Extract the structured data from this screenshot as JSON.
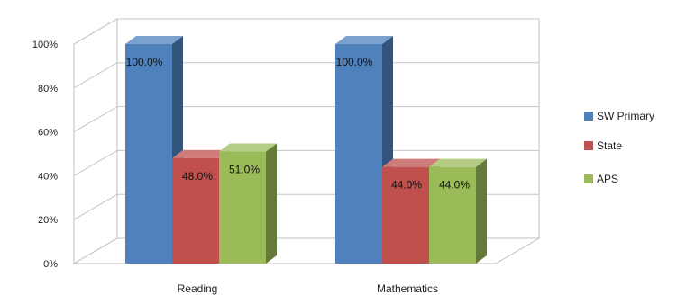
{
  "chart_data": {
    "type": "bar",
    "categories": [
      "Reading",
      "Mathematics"
    ],
    "series": [
      {
        "name": "SW Primary",
        "values": [
          100.0,
          100.0
        ],
        "color": "#4f81bd"
      },
      {
        "name": "State",
        "values": [
          48.0,
          44.0
        ],
        "color": "#c0504d"
      },
      {
        "name": "APS",
        "values": [
          51.0,
          44.0
        ],
        "color": "#9bbb59"
      }
    ],
    "data_labels": [
      [
        "100.0%",
        "100.0%"
      ],
      [
        "48.0%",
        "44.0%"
      ],
      [
        "51.0%",
        "44.0%"
      ]
    ],
    "yticks": [
      "0%",
      "20%",
      "40%",
      "60%",
      "80%",
      "100%"
    ],
    "ylim": [
      0,
      100
    ],
    "legend_position": "right",
    "grid": true
  }
}
